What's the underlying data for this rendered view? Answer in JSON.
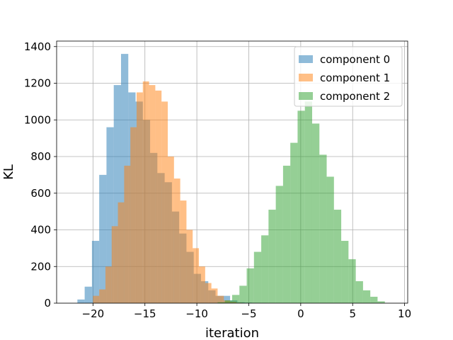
{
  "chart_data": {
    "type": "histogram",
    "title": "",
    "xlabel": "iteration",
    "ylabel": "KL",
    "xlim": [
      -23.5,
      10.3
    ],
    "ylim": [
      0,
      1430
    ],
    "xticks": [
      -20,
      -15,
      -10,
      -5,
      0,
      5,
      10
    ],
    "yticks": [
      0,
      200,
      400,
      600,
      800,
      1000,
      1200,
      1400
    ],
    "grid": true,
    "legend_position": "top-right",
    "series": [
      {
        "name": "component 0",
        "color": "#1f77b4",
        "opacity": 0.5,
        "bin_edges": [
          -21.5,
          -20.8,
          -20.1,
          -19.4,
          -18.7,
          -18.0,
          -17.3,
          -16.6,
          -15.9,
          -15.2,
          -14.5,
          -13.8,
          -13.1,
          -12.4,
          -11.7,
          -11.0,
          -10.3,
          -9.6,
          -8.9,
          -8.2,
          -7.5,
          -6.8,
          -6.1,
          -5.4,
          -4.7,
          -4.0,
          -3.3
        ],
        "counts": [
          20,
          90,
          340,
          700,
          960,
          1190,
          1360,
          1150,
          1100,
          1000,
          820,
          710,
          660,
          500,
          380,
          280,
          160,
          120,
          70,
          40,
          40,
          15,
          5,
          3,
          2,
          1
        ]
      },
      {
        "name": "component 1",
        "color": "#ff7f0e",
        "opacity": 0.5,
        "bin_edges": [
          -20.0,
          -19.4,
          -18.8,
          -18.2,
          -17.6,
          -17.0,
          -16.4,
          -15.8,
          -15.2,
          -14.6,
          -14.0,
          -13.4,
          -12.8,
          -12.2,
          -11.6,
          -11.0,
          -10.4,
          -9.8,
          -9.2,
          -8.6,
          -8.0,
          -7.4,
          -6.8,
          -6.2,
          -5.6
        ],
        "counts": [
          40,
          75,
          200,
          420,
          550,
          750,
          960,
          1150,
          1210,
          1190,
          1160,
          1100,
          800,
          680,
          560,
          400,
          300,
          200,
          110,
          80,
          40,
          15,
          8,
          3
        ]
      },
      {
        "name": "component 2",
        "color": "#2ca02c",
        "opacity": 0.5,
        "bin_edges": [
          -8.0,
          -7.3,
          -6.6,
          -5.9,
          -5.2,
          -4.5,
          -3.8,
          -3.1,
          -2.4,
          -1.7,
          -1.0,
          -0.3,
          0.4,
          1.1,
          1.8,
          2.5,
          3.2,
          3.9,
          4.6,
          5.3,
          6.0,
          6.7,
          7.4,
          8.1
        ],
        "counts": [
          5,
          15,
          45,
          95,
          190,
          280,
          370,
          510,
          640,
          750,
          875,
          1050,
          1100,
          980,
          810,
          690,
          510,
          340,
          240,
          120,
          70,
          35,
          10
        ]
      }
    ]
  }
}
